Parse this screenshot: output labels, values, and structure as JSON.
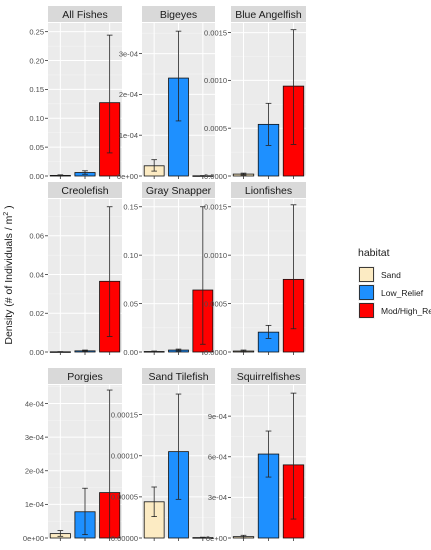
{
  "ylabel_prefix": "Density (# of Individuals / m",
  "ylabel_sup": "2",
  "ylabel_suffix": " )",
  "legend": {
    "title": "habitat",
    "items": [
      {
        "label": "Sand",
        "color": "#fcebc3"
      },
      {
        "label": "Low_Relief",
        "color": "#1e90ff"
      },
      {
        "label": "Mod/High_Relief",
        "color": "#ff0000"
      }
    ]
  },
  "chart_data": [
    {
      "type": "bar",
      "title": "All Fishes",
      "categories": [
        "Sand",
        "Low_Relief",
        "Mod/High_Relief"
      ],
      "values": [
        0.001,
        0.006,
        0.127
      ],
      "error_low": [
        0.0,
        0.003,
        0.04
      ],
      "error_high": [
        0.002,
        0.009,
        0.244
      ],
      "ylim": [
        0,
        0.265
      ],
      "ticks": [
        0.0,
        0.05,
        0.1,
        0.15,
        0.2,
        0.25
      ],
      "tick_labels": [
        "0.00",
        "0.05",
        "0.10",
        "0.15",
        "0.20",
        "0.25"
      ]
    },
    {
      "type": "bar",
      "title": "Bigeyes",
      "categories": [
        "Sand",
        "Low_Relief",
        "Mod/High_Relief"
      ],
      "values": [
        2.5e-05,
        0.00024,
        5e-07
      ],
      "error_low": [
        1.2e-05,
        0.000135,
        0.0
      ],
      "error_high": [
        4e-05,
        0.000355,
        1e-06
      ],
      "ylim": [
        0,
        0.000375
      ],
      "ticks": [
        0.0,
        0.0001,
        0.0002,
        0.0003
      ],
      "tick_labels": [
        "0e+00",
        "1e-04",
        "2e-04",
        "3e-04"
      ]
    },
    {
      "type": "bar",
      "title": "Blue Angelfish",
      "categories": [
        "Sand",
        "Low_Relief",
        "Mod/High_Relief"
      ],
      "values": [
        2e-05,
        0.00054,
        0.00094
      ],
      "error_low": [
        1e-05,
        0.00032,
        0.00033
      ],
      "error_high": [
        3e-05,
        0.00076,
        0.00153
      ],
      "ylim": [
        0,
        0.0016
      ],
      "ticks": [
        0.0,
        0.0005,
        0.001,
        0.0015
      ],
      "tick_labels": [
        "0.0000",
        "0.0005",
        "0.0010",
        "0.0015"
      ]
    },
    {
      "type": "bar",
      "title": "Creolefish",
      "categories": [
        "Sand",
        "Low_Relief",
        "Mod/High_Relief"
      ],
      "values": [
        0.0001,
        0.0006,
        0.0365
      ],
      "error_low": [
        0.0,
        0.0003,
        0.008
      ],
      "error_high": [
        0.0002,
        0.001,
        0.075
      ],
      "ylim": [
        0,
        0.079
      ],
      "ticks": [
        0.0,
        0.02,
        0.04,
        0.06
      ],
      "tick_labels": [
        "0.00",
        "0.02",
        "0.04",
        "0.06"
      ]
    },
    {
      "type": "bar",
      "title": "Gray Snapper",
      "categories": [
        "Sand",
        "Low_Relief",
        "Mod/High_Relief"
      ],
      "values": [
        0.0005,
        0.002,
        0.064
      ],
      "error_low": [
        0.0,
        0.001,
        0.008
      ],
      "error_high": [
        0.001,
        0.003,
        0.15
      ],
      "ylim": [
        0,
        0.158
      ],
      "ticks": [
        0.0,
        0.05,
        0.1,
        0.15
      ],
      "tick_labels": [
        "0.00",
        "0.05",
        "0.10",
        "0.15"
      ]
    },
    {
      "type": "bar",
      "title": "Lionfishes",
      "categories": [
        "Sand",
        "Low_Relief",
        "Mod/High_Relief"
      ],
      "values": [
        1e-05,
        0.000205,
        0.00075
      ],
      "error_low": [
        0.0,
        0.00014,
        0.00024
      ],
      "error_high": [
        2e-05,
        0.000275,
        0.00152
      ],
      "ylim": [
        0,
        0.00158
      ],
      "ticks": [
        0.0,
        0.0005,
        0.001,
        0.0015
      ],
      "tick_labels": [
        "0.0000",
        "0.0005",
        "0.0010",
        "0.0015"
      ]
    },
    {
      "type": "bar",
      "title": "Porgies",
      "categories": [
        "Sand",
        "Low_Relief",
        "Mod/High_Relief"
      ],
      "values": [
        1.3e-05,
        7.8e-05,
        0.000135
      ],
      "error_low": [
        5e-06,
        1e-05,
        0.0
      ],
      "error_high": [
        2.2e-05,
        0.000148,
        0.00044
      ],
      "ylim": [
        0,
        0.000455
      ],
      "ticks": [
        0.0,
        0.0001,
        0.0002,
        0.0003,
        0.0004
      ],
      "tick_labels": [
        "0e+00",
        "1e-04",
        "2e-04",
        "3e-04",
        "4e-04"
      ]
    },
    {
      "type": "bar",
      "title": "Sand Tilefish",
      "categories": [
        "Sand",
        "Low_Relief",
        "Mod/High_Relief"
      ],
      "values": [
        4.4e-05,
        0.000105,
        5e-07
      ],
      "error_low": [
        2.6e-05,
        4.7e-05,
        0.0
      ],
      "error_high": [
        6.2e-05,
        0.000175,
        1e-06
      ],
      "ylim": [
        0,
        0.000186
      ],
      "ticks": [
        0.0,
        5e-05,
        0.0001,
        0.00015
      ],
      "tick_labels": [
        "0.00000",
        "0.00005",
        "0.00010",
        "0.00015"
      ]
    },
    {
      "type": "bar",
      "title": "Squirrelfishes",
      "categories": [
        "Sand",
        "Low_Relief",
        "Mod/High_Relief"
      ],
      "values": [
        1e-05,
        0.00062,
        0.00054
      ],
      "error_low": [
        0.0,
        0.00045,
        0.00014
      ],
      "error_high": [
        2e-05,
        0.00079,
        0.00107
      ],
      "ylim": [
        0,
        0.00113
      ],
      "ticks": [
        0.0,
        0.0003,
        0.0006,
        0.0009
      ],
      "tick_labels": [
        "0e+00",
        "3e-04",
        "6e-04",
        "9e-04"
      ]
    }
  ]
}
